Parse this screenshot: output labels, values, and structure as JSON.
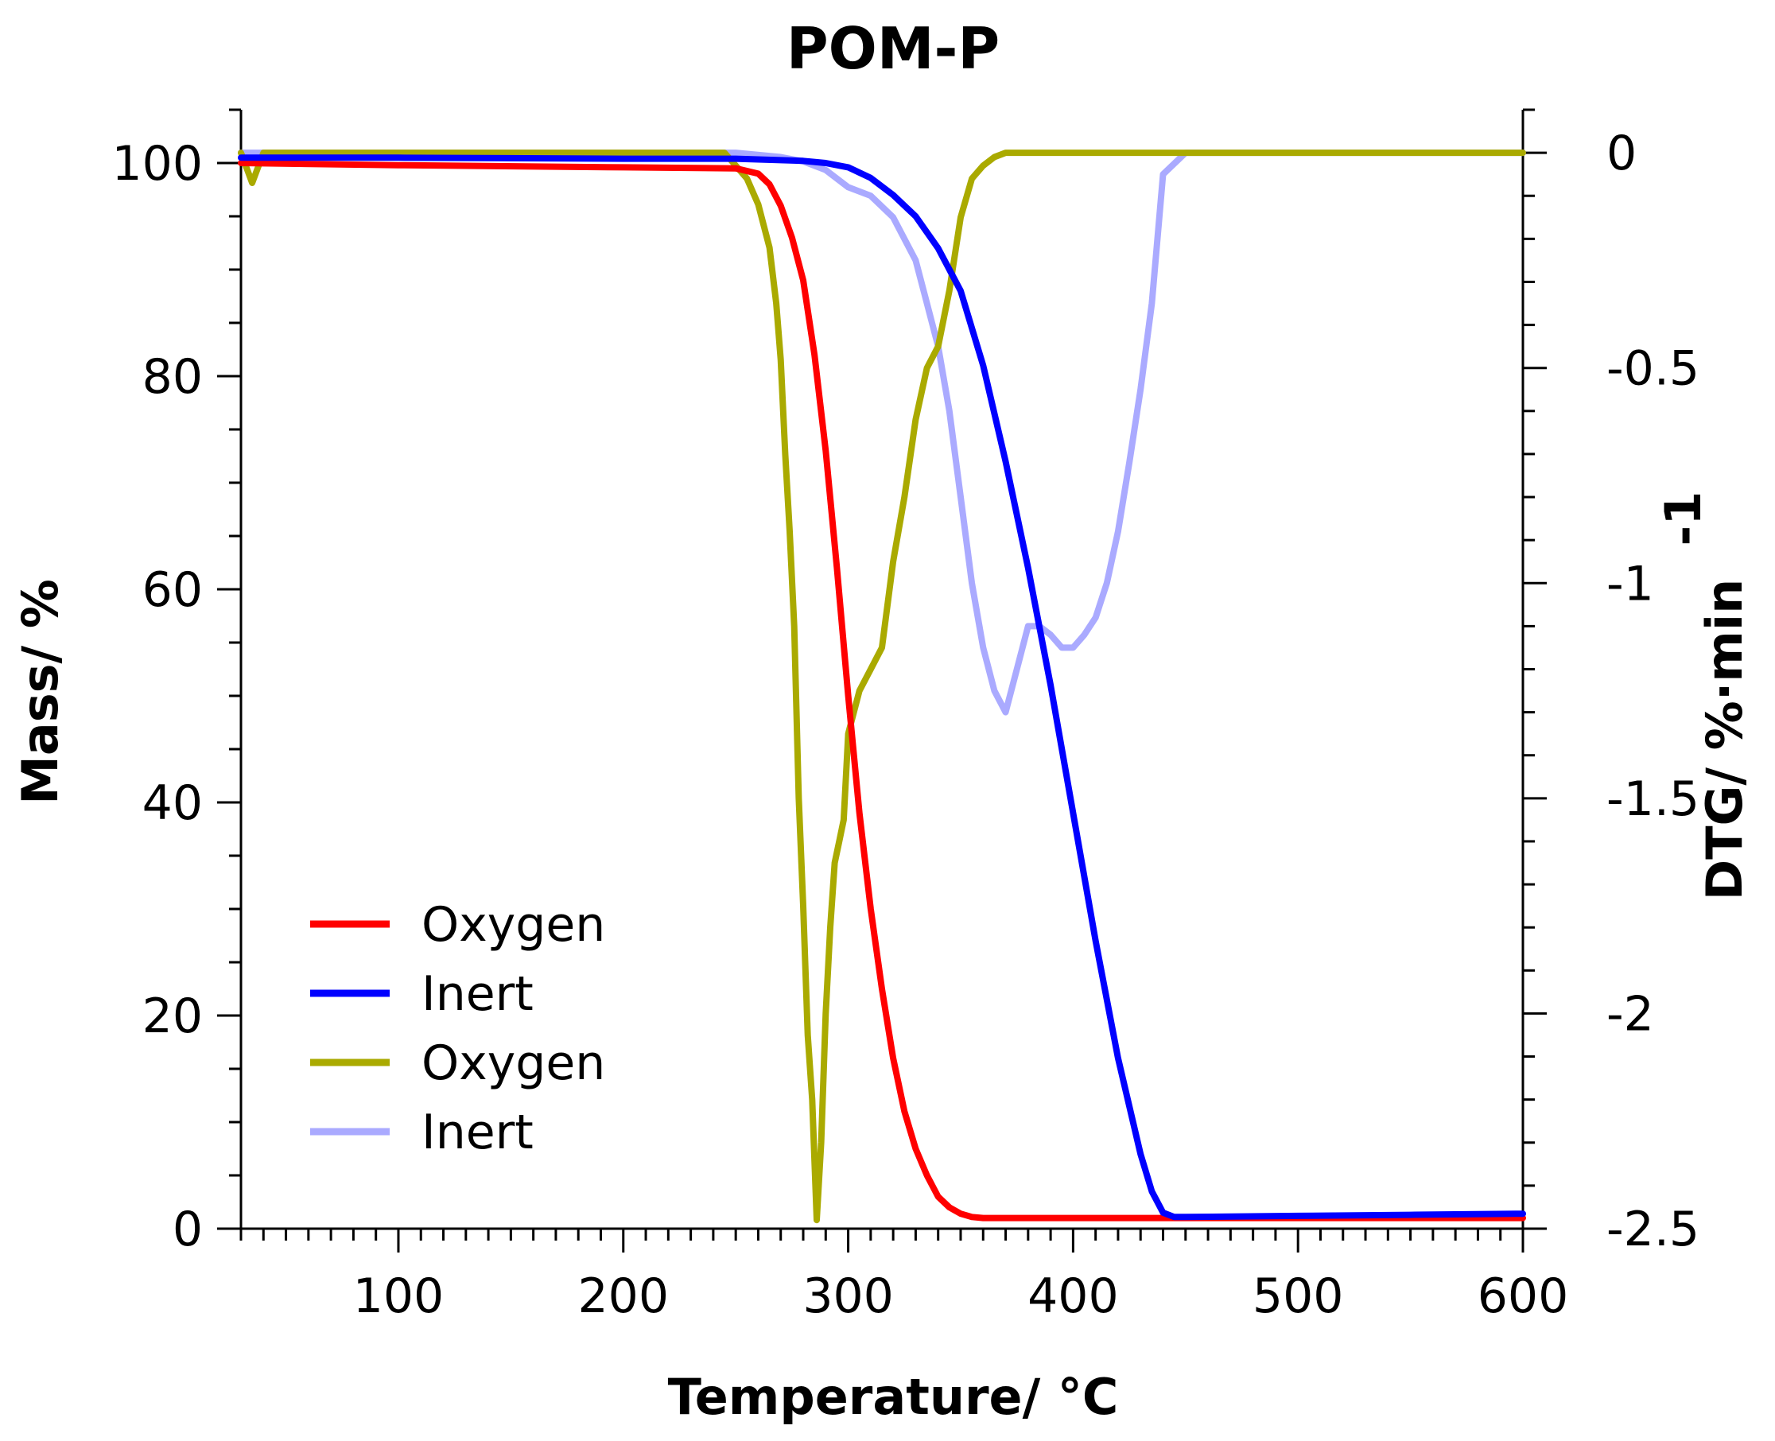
{
  "colors": {
    "mass_oxygen": "#ff0000",
    "mass_inert": "#0000ff",
    "dtg_oxygen": "#aaaa00",
    "dtg_inert": "#aaaaff",
    "axis": "#000000",
    "background": "#ffffff"
  },
  "chart_data": {
    "type": "line",
    "title": "POM-P",
    "xlabel": "Temperature/ °C",
    "ylabel_left": "Mass/ %",
    "ylabel_right": "DTG/ %·min",
    "ylabel_right_superscript": "-1",
    "xlim": [
      30,
      600
    ],
    "ylim_left": [
      0,
      105
    ],
    "ylim_right": [
      -2.5,
      0.1
    ],
    "x_ticks": [
      100,
      200,
      300,
      400,
      500,
      600
    ],
    "x_tick_labels": [
      "100",
      "200",
      "300",
      "400",
      "500",
      "600"
    ],
    "x_minor_step": 10,
    "y_left_ticks": [
      0,
      20,
      40,
      60,
      80,
      100
    ],
    "y_left_tick_labels": [
      "0",
      "20",
      "40",
      "60",
      "80",
      "100"
    ],
    "y_left_minor_step": 5,
    "y_right_ticks": [
      0,
      -0.5,
      -1,
      -1.5,
      -2,
      -2.5
    ],
    "y_right_tick_labels": [
      "0",
      "-0.5",
      "-1",
      "-1.5",
      "-2",
      "-2.5"
    ],
    "y_right_minor_step": 0.1,
    "grid": false,
    "legend_position": "bottom-left",
    "series": [
      {
        "name": "Oxygen",
        "axis": "left",
        "quantity": "Mass",
        "color_key": "mass_oxygen",
        "x": [
          30,
          100,
          200,
          250,
          260,
          265,
          270,
          275,
          280,
          285,
          290,
          295,
          300,
          305,
          310,
          315,
          320,
          325,
          330,
          335,
          340,
          345,
          350,
          355,
          360,
          400,
          450,
          500,
          550,
          600
        ],
        "y": [
          100,
          99.8,
          99.6,
          99.5,
          99,
          98,
          96,
          93,
          89,
          82,
          73,
          62,
          50,
          39,
          30,
          22.5,
          16,
          11,
          7.5,
          5,
          3,
          2,
          1.4,
          1.1,
          1.0,
          1.0,
          1.0,
          1.0,
          1.0,
          1.0
        ]
      },
      {
        "name": "Inert",
        "axis": "left",
        "quantity": "Mass",
        "color_key": "mass_inert",
        "x": [
          30,
          100,
          200,
          250,
          280,
          290,
          300,
          310,
          320,
          330,
          340,
          350,
          360,
          370,
          380,
          390,
          400,
          410,
          420,
          430,
          435,
          440,
          445,
          450,
          500,
          550,
          600
        ],
        "y": [
          100.5,
          100.5,
          100.4,
          100.4,
          100.2,
          100,
          99.6,
          98.6,
          97,
          95,
          92,
          88,
          81,
          72,
          62,
          51,
          39,
          27,
          16,
          7,
          3.5,
          1.5,
          1.1,
          1.1,
          1.2,
          1.3,
          1.4
        ]
      },
      {
        "name": "Oxygen",
        "axis": "right",
        "quantity": "DTG",
        "color_key": "dtg_oxygen",
        "x": [
          30,
          35,
          40,
          100,
          200,
          245,
          250,
          255,
          260,
          265,
          268,
          270,
          272,
          274,
          276,
          278,
          280,
          282,
          284,
          286,
          288,
          290,
          292,
          294,
          296,
          298,
          300,
          305,
          310,
          315,
          320,
          325,
          330,
          335,
          340,
          345,
          350,
          355,
          360,
          365,
          370,
          380,
          400,
          450,
          500,
          550,
          600
        ],
        "y": [
          0.0,
          -0.07,
          0.0,
          0.0,
          0.0,
          0.0,
          -0.03,
          -0.06,
          -0.12,
          -0.22,
          -0.35,
          -0.48,
          -0.7,
          -0.88,
          -1.1,
          -1.5,
          -1.75,
          -2.05,
          -2.2,
          -2.48,
          -2.3,
          -2.0,
          -1.8,
          -1.65,
          -1.6,
          -1.55,
          -1.35,
          -1.25,
          -1.2,
          -1.15,
          -0.95,
          -0.8,
          -0.62,
          -0.5,
          -0.45,
          -0.32,
          -0.15,
          -0.06,
          -0.03,
          -0.01,
          0.0,
          0.0,
          0.0,
          0.0,
          0.0,
          0.0,
          0.0
        ]
      },
      {
        "name": "Inert",
        "axis": "right",
        "quantity": "DTG",
        "color_key": "dtg_inert",
        "x": [
          30,
          100,
          200,
          250,
          270,
          280,
          290,
          300,
          310,
          320,
          330,
          335,
          340,
          345,
          350,
          355,
          360,
          365,
          370,
          375,
          380,
          385,
          390,
          395,
          400,
          405,
          410,
          415,
          420,
          425,
          430,
          435,
          440,
          450,
          460,
          480,
          500,
          520,
          540,
          560,
          580,
          600
        ],
        "y": [
          0.0,
          0.0,
          0.0,
          0.0,
          -0.01,
          -0.02,
          -0.04,
          -0.08,
          -0.1,
          -0.15,
          -0.25,
          -0.35,
          -0.45,
          -0.6,
          -0.8,
          -1.0,
          -1.15,
          -1.25,
          -1.3,
          -1.2,
          -1.1,
          -1.1,
          -1.12,
          -1.15,
          -1.15,
          -1.12,
          -1.08,
          -1.0,
          -0.88,
          -0.72,
          -0.55,
          -0.35,
          -0.05,
          0.0,
          0.0,
          0.0,
          0.0,
          0.0,
          0.0,
          0.0,
          0.0,
          0.0
        ]
      }
    ]
  }
}
